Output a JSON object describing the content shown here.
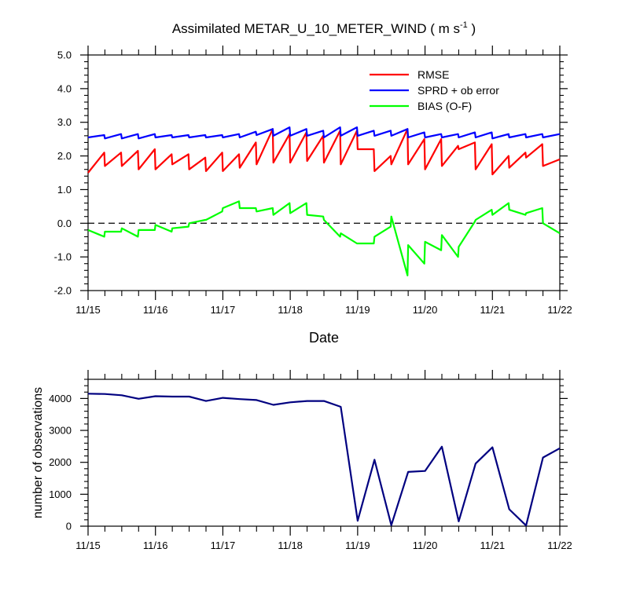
{
  "title": "Assimilated METAR_U_10_METER_WIND ( m s",
  "title_sup": "-1",
  "title_end": " )",
  "chart_data": [
    {
      "type": "line",
      "xlabel": "Date",
      "ylabel": "",
      "xlim": [
        0,
        7
      ],
      "ylim": [
        -2.0,
        5.0
      ],
      "x_ticks": [
        "11/15",
        "11/16",
        "11/17",
        "11/18",
        "11/19",
        "11/20",
        "11/21",
        "11/22"
      ],
      "y_ticks": [
        "5.0",
        "4.0",
        "3.0",
        "2.0",
        "1.0",
        "0.0",
        "-1.0",
        "-2.0"
      ],
      "zero_line": {
        "y": 0,
        "style": "dashed"
      },
      "legend_position": "top-right",
      "series": [
        {
          "name": "RMSE",
          "color": "#ff0000",
          "points": [
            [
              0.0,
              1.5
            ],
            [
              0.24,
              2.1
            ],
            [
              0.25,
              1.7
            ],
            [
              0.49,
              2.1
            ],
            [
              0.5,
              1.7
            ],
            [
              0.74,
              2.15
            ],
            [
              0.75,
              1.6
            ],
            [
              0.99,
              2.2
            ],
            [
              1.0,
              1.6
            ],
            [
              1.24,
              2.05
            ],
            [
              1.25,
              1.75
            ],
            [
              1.49,
              2.05
            ],
            [
              1.5,
              1.6
            ],
            [
              1.74,
              1.95
            ],
            [
              1.75,
              1.55
            ],
            [
              1.99,
              2.1
            ],
            [
              2.0,
              1.55
            ],
            [
              2.24,
              2.05
            ],
            [
              2.25,
              1.65
            ],
            [
              2.49,
              2.4
            ],
            [
              2.5,
              1.75
            ],
            [
              2.74,
              2.8
            ],
            [
              2.75,
              1.8
            ],
            [
              2.99,
              2.65
            ],
            [
              3.0,
              1.8
            ],
            [
              3.24,
              2.7
            ],
            [
              3.25,
              1.85
            ],
            [
              3.49,
              2.6
            ],
            [
              3.5,
              1.8
            ],
            [
              3.74,
              2.75
            ],
            [
              3.75,
              1.75
            ],
            [
              3.99,
              2.75
            ],
            [
              4.0,
              2.2
            ],
            [
              4.24,
              2.2
            ],
            [
              4.25,
              1.55
            ],
            [
              4.49,
              2.0
            ],
            [
              4.5,
              1.75
            ],
            [
              4.74,
              2.8
            ],
            [
              4.75,
              1.75
            ],
            [
              4.99,
              2.5
            ],
            [
              5.0,
              1.6
            ],
            [
              5.24,
              2.5
            ],
            [
              5.25,
              1.7
            ],
            [
              5.49,
              2.3
            ],
            [
              5.5,
              2.2
            ],
            [
              5.74,
              2.4
            ],
            [
              5.75,
              1.6
            ],
            [
              5.99,
              2.35
            ],
            [
              6.0,
              1.45
            ],
            [
              6.24,
              2.0
            ],
            [
              6.25,
              1.65
            ],
            [
              6.49,
              2.1
            ],
            [
              6.5,
              1.95
            ],
            [
              6.74,
              2.35
            ],
            [
              6.75,
              1.7
            ],
            [
              7.0,
              1.9
            ]
          ]
        },
        {
          "name": "SPRD + ob error",
          "color": "#0000ff",
          "points": [
            [
              0.0,
              2.55
            ],
            [
              0.24,
              2.62
            ],
            [
              0.25,
              2.52
            ],
            [
              0.49,
              2.65
            ],
            [
              0.5,
              2.52
            ],
            [
              0.74,
              2.65
            ],
            [
              0.75,
              2.52
            ],
            [
              0.99,
              2.65
            ],
            [
              1.0,
              2.55
            ],
            [
              1.24,
              2.62
            ],
            [
              1.25,
              2.55
            ],
            [
              1.49,
              2.62
            ],
            [
              1.5,
              2.55
            ],
            [
              1.74,
              2.62
            ],
            [
              1.75,
              2.55
            ],
            [
              1.99,
              2.62
            ],
            [
              2.0,
              2.55
            ],
            [
              2.24,
              2.65
            ],
            [
              2.25,
              2.55
            ],
            [
              2.49,
              2.72
            ],
            [
              2.5,
              2.62
            ],
            [
              2.74,
              2.8
            ],
            [
              2.75,
              2.6
            ],
            [
              2.99,
              2.85
            ],
            [
              3.0,
              2.6
            ],
            [
              3.24,
              2.8
            ],
            [
              3.25,
              2.6
            ],
            [
              3.49,
              2.75
            ],
            [
              3.5,
              2.55
            ],
            [
              3.74,
              2.85
            ],
            [
              3.75,
              2.6
            ],
            [
              3.99,
              2.85
            ],
            [
              4.0,
              2.6
            ],
            [
              4.24,
              2.75
            ],
            [
              4.25,
              2.6
            ],
            [
              4.49,
              2.75
            ],
            [
              4.5,
              2.6
            ],
            [
              4.74,
              2.8
            ],
            [
              4.75,
              2.55
            ],
            [
              4.99,
              2.7
            ],
            [
              5.0,
              2.55
            ],
            [
              5.24,
              2.65
            ],
            [
              5.25,
              2.55
            ],
            [
              5.49,
              2.65
            ],
            [
              5.5,
              2.55
            ],
            [
              5.74,
              2.7
            ],
            [
              5.75,
              2.55
            ],
            [
              5.99,
              2.7
            ],
            [
              6.0,
              2.52
            ],
            [
              6.24,
              2.65
            ],
            [
              6.25,
              2.55
            ],
            [
              6.49,
              2.65
            ],
            [
              6.5,
              2.55
            ],
            [
              6.74,
              2.65
            ],
            [
              6.75,
              2.55
            ],
            [
              7.0,
              2.65
            ]
          ]
        },
        {
          "name": "BIAS (O-F)",
          "color": "#00ff00",
          "points": [
            [
              0.0,
              -0.2
            ],
            [
              0.24,
              -0.4
            ],
            [
              0.25,
              -0.25
            ],
            [
              0.49,
              -0.25
            ],
            [
              0.5,
              -0.15
            ],
            [
              0.74,
              -0.4
            ],
            [
              0.75,
              -0.2
            ],
            [
              0.99,
              -0.2
            ],
            [
              1.0,
              -0.05
            ],
            [
              1.24,
              -0.25
            ],
            [
              1.25,
              -0.15
            ],
            [
              1.49,
              -0.1
            ],
            [
              1.5,
              0.0
            ],
            [
              1.74,
              0.1
            ],
            [
              1.75,
              0.1
            ],
            [
              1.99,
              0.35
            ],
            [
              2.0,
              0.45
            ],
            [
              2.24,
              0.65
            ],
            [
              2.25,
              0.45
            ],
            [
              2.49,
              0.45
            ],
            [
              2.5,
              0.35
            ],
            [
              2.74,
              0.45
            ],
            [
              2.75,
              0.25
            ],
            [
              2.99,
              0.6
            ],
            [
              3.0,
              0.3
            ],
            [
              3.24,
              0.6
            ],
            [
              3.25,
              0.25
            ],
            [
              3.49,
              0.2
            ],
            [
              3.5,
              0.1
            ],
            [
              3.74,
              -0.4
            ],
            [
              3.75,
              -0.3
            ],
            [
              3.99,
              -0.6
            ],
            [
              4.0,
              -0.6
            ],
            [
              4.24,
              -0.6
            ],
            [
              4.25,
              -0.4
            ],
            [
              4.49,
              -0.1
            ],
            [
              4.5,
              0.2
            ],
            [
              4.74,
              -1.55
            ],
            [
              4.75,
              -0.65
            ],
            [
              4.99,
              -1.2
            ],
            [
              5.0,
              -0.55
            ],
            [
              5.24,
              -0.8
            ],
            [
              5.25,
              -0.35
            ],
            [
              5.49,
              -1.0
            ],
            [
              5.5,
              -0.7
            ],
            [
              5.74,
              0.05
            ],
            [
              5.75,
              0.1
            ],
            [
              5.99,
              0.4
            ],
            [
              6.0,
              0.25
            ],
            [
              6.24,
              0.6
            ],
            [
              6.25,
              0.4
            ],
            [
              6.49,
              0.25
            ],
            [
              6.5,
              0.3
            ],
            [
              6.74,
              0.45
            ],
            [
              6.75,
              0.0
            ],
            [
              7.0,
              -0.3
            ]
          ]
        }
      ]
    },
    {
      "type": "line",
      "xlabel": "",
      "ylabel": "number of observations",
      "xlim": [
        0,
        7
      ],
      "ylim": [
        0,
        4600
      ],
      "x_ticks": [
        "11/15",
        "11/16",
        "11/17",
        "11/18",
        "11/19",
        "11/20",
        "11/21",
        "11/22"
      ],
      "y_ticks": [
        "4000",
        "3000",
        "2000",
        "1000",
        "0"
      ],
      "series": [
        {
          "name": "",
          "color": "#000080",
          "points": [
            [
              0.0,
              4150
            ],
            [
              0.25,
              4140
            ],
            [
              0.5,
              4100
            ],
            [
              0.75,
              3990
            ],
            [
              1.0,
              4070
            ],
            [
              1.25,
              4060
            ],
            [
              1.5,
              4060
            ],
            [
              1.75,
              3920
            ],
            [
              2.0,
              4020
            ],
            [
              2.25,
              3980
            ],
            [
              2.5,
              3950
            ],
            [
              2.75,
              3800
            ],
            [
              3.0,
              3880
            ],
            [
              3.25,
              3920
            ],
            [
              3.5,
              3920
            ],
            [
              3.75,
              3740
            ],
            [
              4.0,
              170
            ],
            [
              4.25,
              2080
            ],
            [
              4.5,
              30
            ],
            [
              4.75,
              1700
            ],
            [
              5.0,
              1730
            ],
            [
              5.25,
              2490
            ],
            [
              5.5,
              150
            ],
            [
              5.75,
              1960
            ],
            [
              6.0,
              2470
            ],
            [
              6.25,
              530
            ],
            [
              6.5,
              20
            ],
            [
              6.75,
              2150
            ],
            [
              7.0,
              2440
            ]
          ]
        }
      ]
    }
  ]
}
